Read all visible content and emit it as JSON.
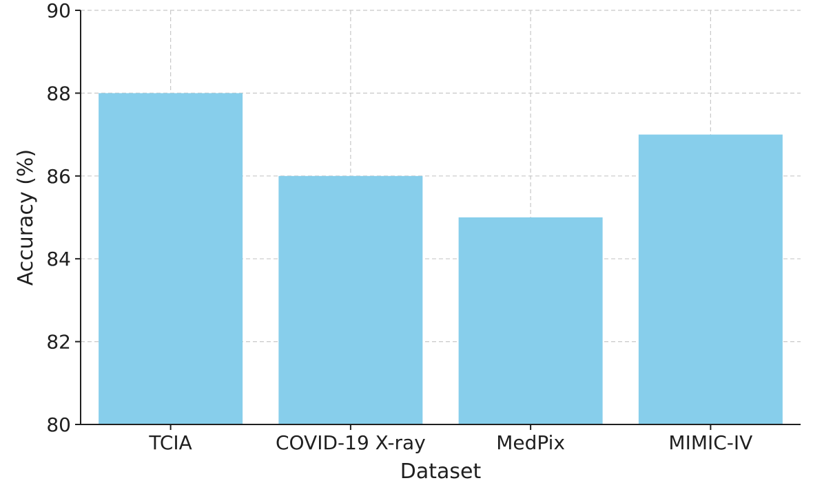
{
  "chart_data": {
    "type": "bar",
    "title": "",
    "xlabel": "Dataset",
    "ylabel": "Accuracy (%)",
    "categories": [
      "TCIA",
      "COVID-19 X-ray",
      "MedPix",
      "MIMIC-IV"
    ],
    "values": [
      88,
      86,
      85,
      87
    ],
    "ylim": [
      80,
      90
    ],
    "yticks": [
      80,
      82,
      84,
      86,
      88,
      90
    ],
    "grid": true,
    "bar_color": "#87CEEB",
    "grid_color": "#c8c8c8",
    "axis_color": "#1f1f1f"
  }
}
